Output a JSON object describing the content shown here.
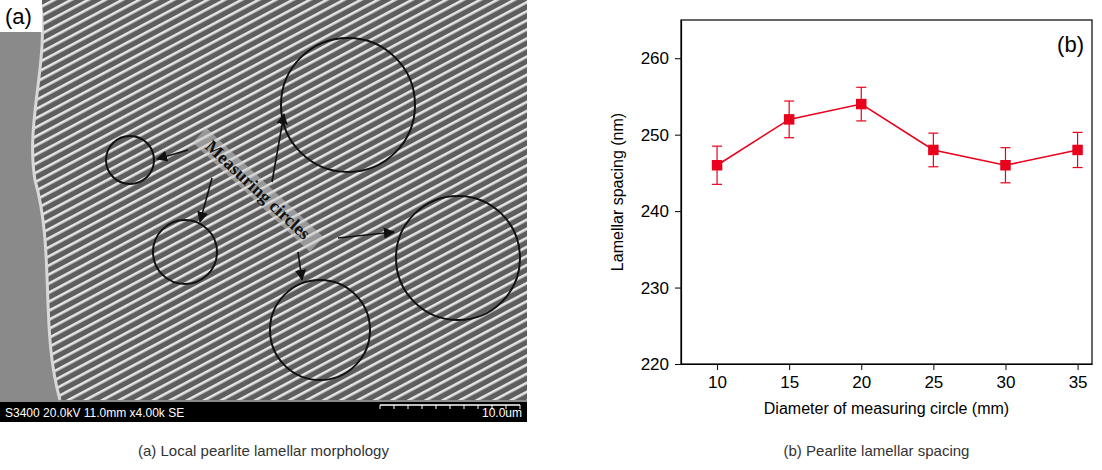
{
  "chart_data": {
    "type": "line",
    "panel_label": "(b)",
    "caption": "(b) Pearlite lamellar spacing",
    "x_label": "Diameter of measuring circle (mm)",
    "y_label": "Lamellar spacing (nm)",
    "x": [
      10,
      15,
      20,
      25,
      30,
      35
    ],
    "values": [
      246,
      252,
      254,
      248,
      246,
      248
    ],
    "errors": [
      2.5,
      2.4,
      2.2,
      2.2,
      2.3,
      2.3
    ],
    "xlim": [
      7.5,
      36
    ],
    "ylim": [
      220,
      265
    ],
    "xticks": [
      10,
      15,
      20,
      25,
      30,
      35
    ],
    "yticks": [
      220,
      230,
      240,
      250,
      260
    ],
    "color": "#e8001c",
    "marker": "square",
    "line_style": "solid"
  },
  "image_panel": {
    "panel_label": "(a)",
    "caption": "(a) Local pearlite lamellar morphology",
    "annotation": "Measuring circles",
    "info_bar": "S3400 20.0kV 11.0mm x4.00k SE",
    "scale_bar": "10.0um"
  }
}
